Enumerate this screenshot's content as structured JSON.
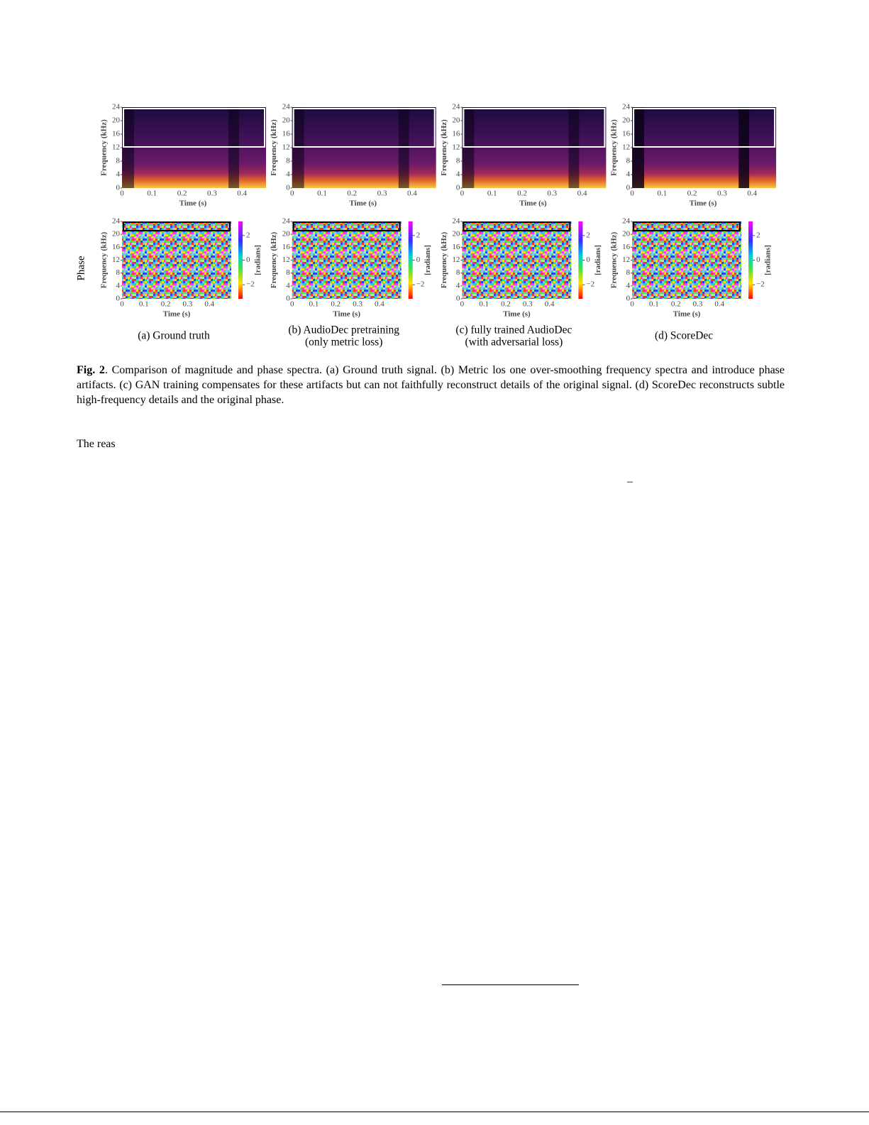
{
  "figure": {
    "row_label": "Phase",
    "y_axis_label": "Frequency (kHz)",
    "x_axis_label": "Time (s)",
    "yticks": [
      "0",
      "4",
      "8",
      "12",
      "16",
      "20",
      "24"
    ],
    "xticks": [
      "0",
      "0.1",
      "0.2",
      "0.3",
      "0.4"
    ],
    "colorbar_label": "[radians]",
    "colorbar_ticks": [
      "2",
      "0",
      "−2"
    ],
    "panels": [
      {
        "caption": [
          "(a) Ground truth"
        ]
      },
      {
        "caption": [
          "(b) AudioDec pretraining",
          "(only metric loss)"
        ]
      },
      {
        "caption": [
          "(c) fully trained AudioDec",
          "(with adversarial loss)"
        ]
      },
      {
        "caption": [
          "(d) ScoreDec"
        ]
      }
    ]
  },
  "caption": {
    "label": "Fig. 2",
    "text": ". Comparison of magnitude and phase spectra. (a) Ground truth signal. (b) Metric los          one over-smoothing frequency spectra and introduce phase artifacts. (c) GAN training compensates for these artifacts but can not faithfully reconstruct details of the original signal. (d) ScoreDec reconstructs subtle high-frequency details and the original phase."
  },
  "body": {
    "text": "The reas",
    "dash": "–"
  }
}
